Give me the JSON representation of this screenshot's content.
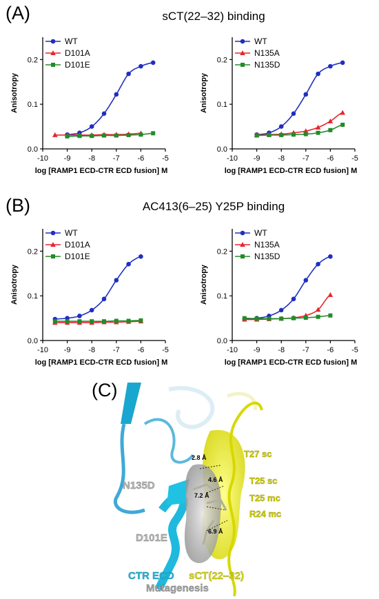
{
  "panels": {
    "A": {
      "letter": "(A)",
      "title": "sCT(22‒32) binding"
    },
    "B": {
      "letter": "(B)",
      "title": "AC413(6‒25) Y25P binding"
    },
    "C": {
      "letter": "(C)"
    }
  },
  "chart_data": [
    {
      "type": "line",
      "xlabel": "log [RAMP1 ECD-CTR ECD fusion] M",
      "ylabel": "Anisotropy",
      "xlim": [
        -10,
        -5
      ],
      "ylim": [
        0,
        0.25
      ],
      "xticks": [
        "-10",
        "-9",
        "-8",
        "-7",
        "-6",
        "-5"
      ],
      "yticks": [
        "0.0",
        "0.1",
        "0.2"
      ],
      "series": [
        {
          "name": "WT",
          "color": "#1f2fbf",
          "marker": "circle",
          "x": [
            -9,
            -8.5,
            -8,
            -7.5,
            -7,
            -6.5,
            -6,
            -5.5
          ],
          "y": [
            0.032,
            0.036,
            0.05,
            0.079,
            0.122,
            0.168,
            0.185,
            0.193
          ]
        },
        {
          "name": "D101A",
          "color": "#e8242c",
          "marker": "triangle",
          "x": [
            -9.5,
            -9,
            -8.5,
            -8,
            -7.5,
            -7,
            -6.5,
            -6
          ],
          "y": [
            0.031,
            0.031,
            0.031,
            0.031,
            0.032,
            0.032,
            0.033,
            0.035
          ]
        },
        {
          "name": "D101E",
          "color": "#238b2a",
          "marker": "square",
          "x": [
            -9,
            -8.5,
            -8,
            -7.5,
            -7,
            -6.5,
            -6,
            -5.5
          ],
          "y": [
            0.028,
            0.029,
            0.029,
            0.03,
            0.03,
            0.031,
            0.032,
            0.035
          ]
        }
      ]
    },
    {
      "type": "line",
      "xlabel": "log [RAMP1 ECD-CTR ECD fusion] M",
      "ylabel": "Anisotropy",
      "xlim": [
        -10,
        -5
      ],
      "ylim": [
        0,
        0.25
      ],
      "xticks": [
        "-10",
        "-9",
        "-8",
        "-7",
        "-6",
        "-5"
      ],
      "yticks": [
        "0.0",
        "0.1",
        "0.2"
      ],
      "series": [
        {
          "name": "WT",
          "color": "#1f2fbf",
          "marker": "circle",
          "x": [
            -9,
            -8.5,
            -8,
            -7.5,
            -7,
            -6.5,
            -6,
            -5.5
          ],
          "y": [
            0.032,
            0.036,
            0.05,
            0.079,
            0.122,
            0.168,
            0.185,
            0.193
          ]
        },
        {
          "name": "N135A",
          "color": "#e8242c",
          "marker": "triangle",
          "x": [
            -9,
            -8.5,
            -8,
            -7.5,
            -7,
            -6.5,
            -6,
            -5.5
          ],
          "y": [
            0.031,
            0.032,
            0.033,
            0.036,
            0.04,
            0.048,
            0.062,
            0.081
          ]
        },
        {
          "name": "N135D",
          "color": "#238b2a",
          "marker": "square",
          "x": [
            -9,
            -8.5,
            -8,
            -7.5,
            -7,
            -6.5,
            -6,
            -5.5
          ],
          "y": [
            0.03,
            0.031,
            0.031,
            0.032,
            0.033,
            0.036,
            0.042,
            0.054
          ]
        }
      ]
    },
    {
      "type": "line",
      "xlabel": "log [RAMP1 ECD-CTR ECD fusion] M",
      "ylabel": "Anisotropy",
      "xlim": [
        -10,
        -5
      ],
      "ylim": [
        0,
        0.25
      ],
      "xticks": [
        "-10",
        "-9",
        "-8",
        "-7",
        "-6",
        "-5"
      ],
      "yticks": [
        "0.0",
        "0.1",
        "0.2"
      ],
      "series": [
        {
          "name": "WT",
          "color": "#1f2fbf",
          "marker": "circle",
          "x": [
            -9.5,
            -9,
            -8.5,
            -8,
            -7.5,
            -7,
            -6.5,
            -6
          ],
          "y": [
            0.048,
            0.05,
            0.055,
            0.068,
            0.093,
            0.135,
            0.171,
            0.188
          ]
        },
        {
          "name": "D101A",
          "color": "#e8242c",
          "marker": "triangle",
          "x": [
            -9.5,
            -9,
            -8.5,
            -8,
            -7.5,
            -7,
            -6.5,
            -6
          ],
          "y": [
            0.04,
            0.04,
            0.04,
            0.04,
            0.041,
            0.041,
            0.042,
            0.043
          ]
        },
        {
          "name": "D101E",
          "color": "#238b2a",
          "marker": "square",
          "x": [
            -9.5,
            -9,
            -8.5,
            -8,
            -7.5,
            -7,
            -6.5,
            -6
          ],
          "y": [
            0.043,
            0.043,
            0.043,
            0.043,
            0.043,
            0.044,
            0.044,
            0.045
          ]
        }
      ]
    },
    {
      "type": "line",
      "xlabel": "log [RAMP1 ECD-CTR ECD fusion] M",
      "ylabel": "Anisotropy",
      "xlim": [
        -10,
        -5
      ],
      "ylim": [
        0,
        0.25
      ],
      "xticks": [
        "-10",
        "-9",
        "-8",
        "-7",
        "-6",
        "-5"
      ],
      "yticks": [
        "0.0",
        "0.1",
        "0.2"
      ],
      "series": [
        {
          "name": "WT",
          "color": "#1f2fbf",
          "marker": "circle",
          "x": [
            -9.5,
            -9,
            -8.5,
            -8,
            -7.5,
            -7,
            -6.5,
            -6
          ],
          "y": [
            0.048,
            0.05,
            0.055,
            0.068,
            0.093,
            0.135,
            0.171,
            0.188
          ]
        },
        {
          "name": "N135A",
          "color": "#e8242c",
          "marker": "triangle",
          "x": [
            -9.5,
            -9,
            -8.5,
            -8,
            -7.5,
            -7,
            -6.5,
            -6
          ],
          "y": [
            0.047,
            0.047,
            0.048,
            0.049,
            0.051,
            0.056,
            0.069,
            0.102
          ]
        },
        {
          "name": "N135D",
          "color": "#238b2a",
          "marker": "square",
          "x": [
            -9.5,
            -9,
            -8.5,
            -8,
            -7.5,
            -7,
            -6.5,
            -6
          ],
          "y": [
            0.05,
            0.049,
            0.049,
            0.049,
            0.05,
            0.051,
            0.053,
            0.056
          ]
        }
      ]
    }
  ],
  "structure": {
    "residue_labels": [
      "N135D",
      "D101E"
    ],
    "peptide_labels": [
      "T27 sc",
      "T25 sc",
      "T25 mc",
      "R24 mc"
    ],
    "distances": [
      "2.8 Å",
      "4.6 Å",
      "7.2 Å",
      "6.9 Å"
    ],
    "caption_ctr": "CTR ECD",
    "caption_sct": "sCT(22‒32)",
    "caption_mut": "Mutagenesis",
    "colors": {
      "ctr": "#29b6d8",
      "sct": "#e0e020",
      "mut": "#a8a8a8"
    }
  }
}
